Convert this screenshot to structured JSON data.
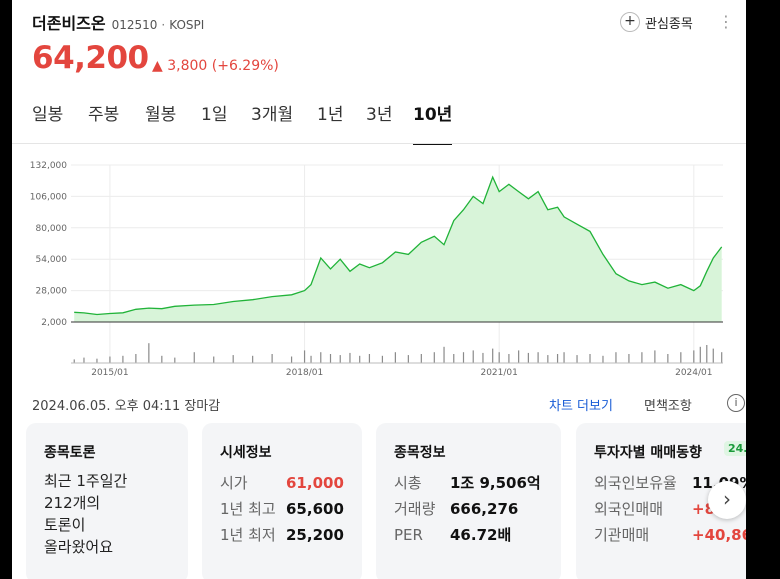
{
  "stock": {
    "name": "더존비즈온",
    "code": "012510",
    "separator": "·",
    "market": "KOSPI",
    "price": "64,200",
    "change": "▲ 3,800 (+6.29%)"
  },
  "header": {
    "favorite_icon": "plus-icon",
    "favorite_label": "관심종목",
    "more_icon": "⋮"
  },
  "tabs": [
    {
      "label": "일봉",
      "active": false
    },
    {
      "label": "주봉",
      "active": false
    },
    {
      "label": "월봉",
      "active": false
    },
    {
      "label": "1일",
      "active": false
    },
    {
      "label": "3개월",
      "active": false
    },
    {
      "label": "1년",
      "active": false
    },
    {
      "label": "3년",
      "active": false
    },
    {
      "label": "10년",
      "active": true
    }
  ],
  "chart_data": {
    "type": "area",
    "y_ticks": [
      "132,000",
      "106,000",
      "80,000",
      "54,000",
      "28,000",
      "2,000"
    ],
    "x_ticks": [
      "2015/01",
      "2018/01",
      "2021/01",
      "2024/01"
    ],
    "ylim": [
      2000,
      132000
    ],
    "xlim": [
      2014.4,
      2024.45
    ],
    "grid": true,
    "colors": {
      "line": "#21b339",
      "fill": "#d8f4d9",
      "volume": "#8a8a8a"
    },
    "x": [
      2014.45,
      2014.6,
      2014.8,
      2015.0,
      2015.2,
      2015.4,
      2015.6,
      2015.8,
      2016.0,
      2016.3,
      2016.6,
      2016.9,
      2017.2,
      2017.5,
      2017.8,
      2018.0,
      2018.1,
      2018.25,
      2018.4,
      2018.55,
      2018.7,
      2018.85,
      2019.0,
      2019.2,
      2019.4,
      2019.6,
      2019.8,
      2020.0,
      2020.15,
      2020.3,
      2020.45,
      2020.6,
      2020.75,
      2020.9,
      2021.0,
      2021.15,
      2021.3,
      2021.45,
      2021.6,
      2021.75,
      2021.9,
      2022.0,
      2022.2,
      2022.4,
      2022.6,
      2022.8,
      2023.0,
      2023.2,
      2023.4,
      2023.6,
      2023.8,
      2024.0,
      2024.1,
      2024.2,
      2024.3,
      2024.43
    ],
    "y": [
      10000,
      9500,
      8200,
      9000,
      9600,
      12500,
      13500,
      13000,
      15000,
      16000,
      16500,
      19000,
      20500,
      23000,
      24500,
      28000,
      33000,
      55000,
      46000,
      54000,
      44000,
      50000,
      47000,
      51000,
      60000,
      58000,
      68000,
      73000,
      66000,
      86000,
      95000,
      106000,
      100000,
      122000,
      110000,
      116000,
      110000,
      104000,
      110000,
      95000,
      97000,
      89000,
      83000,
      77000,
      58000,
      42000,
      36000,
      33000,
      35000,
      30000,
      33000,
      28000,
      32000,
      44000,
      55000,
      64200
    ],
    "volume": [
      0.1,
      0.15,
      0.12,
      0.18,
      0.2,
      0.25,
      0.55,
      0.2,
      0.15,
      0.3,
      0.18,
      0.22,
      0.2,
      0.25,
      0.18,
      0.35,
      0.2,
      0.3,
      0.25,
      0.22,
      0.28,
      0.2,
      0.25,
      0.2,
      0.3,
      0.22,
      0.25,
      0.3,
      0.45,
      0.25,
      0.3,
      0.35,
      0.28,
      0.4,
      0.3,
      0.25,
      0.35,
      0.28,
      0.3,
      0.22,
      0.25,
      0.3,
      0.22,
      0.25,
      0.2,
      0.3,
      0.25,
      0.3,
      0.35,
      0.25,
      0.3,
      0.35,
      0.45,
      0.5,
      0.4,
      0.3
    ]
  },
  "meta": {
    "timestamp": "2024.06.05. 오후 04:11 장마감",
    "more_chart": "차트 더보기",
    "adjust": "면책조항",
    "info_icon": "i"
  },
  "cards": {
    "discussion": {
      "title": "종목토론",
      "line1": "최근 1주일간",
      "line2": "212개의",
      "line3": "토론이",
      "line4": "올라왔어요"
    },
    "quote": {
      "title": "시세정보",
      "rows": [
        {
          "label": "시가",
          "value": "61,000"
        },
        {
          "label": "1년 최고",
          "value": "65,600"
        },
        {
          "label": "1년 최저",
          "value": "25,200"
        }
      ]
    },
    "info": {
      "title": "종목정보",
      "rows": [
        {
          "label": "시총",
          "value": "1조 9,506억"
        },
        {
          "label": "거래량",
          "value": "666,276"
        },
        {
          "label": "PER",
          "value": "46.72배"
        }
      ]
    },
    "investor": {
      "title": "투자자별 매매동향",
      "badge": "24.",
      "rows": [
        {
          "label": "외국인보유율",
          "value": "11.09%"
        },
        {
          "label": "외국인매매",
          "value": "+8"
        },
        {
          "label": "기관매매",
          "value": "+40,86"
        }
      ]
    }
  },
  "next_button": "›"
}
